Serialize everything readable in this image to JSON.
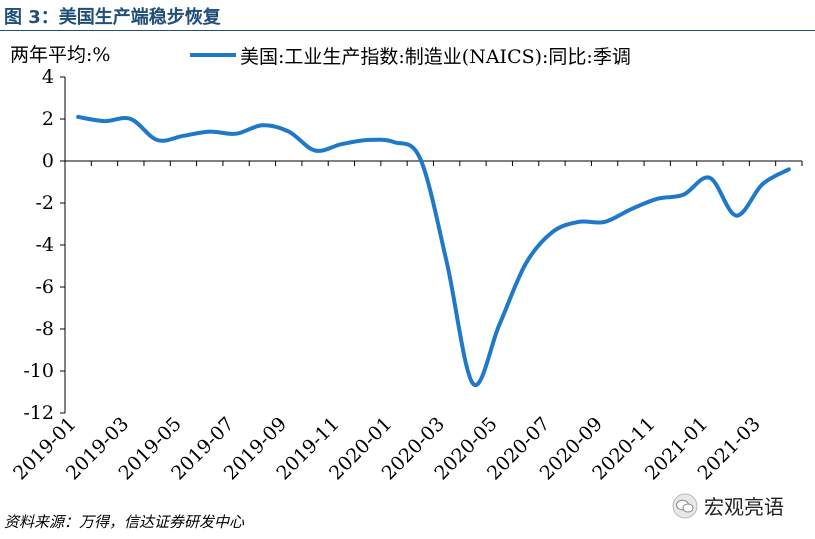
{
  "figure_title": "图 3：美国生产端稳步恢复",
  "source": "资料来源：万得，信达证券研发中心",
  "watermark": "宏观亮语",
  "colors": {
    "line": "#1f78c8",
    "title": "#1f4e79"
  },
  "chart_data": {
    "type": "line",
    "ylabel": "两年平均:%",
    "ylim": [
      -12,
      4
    ],
    "yticks": [
      4,
      2,
      0,
      -2,
      -4,
      -6,
      -8,
      -10,
      -12
    ],
    "grid": false,
    "legend_position": "top",
    "xticks": [
      "2019-01",
      "2019-03",
      "2019-05",
      "2019-07",
      "2019-09",
      "2019-11",
      "2020-01",
      "2020-03",
      "2020-05",
      "2020-07",
      "2020-09",
      "2020-11",
      "2021-01",
      "2021-03"
    ],
    "x": [
      "2019-01",
      "2019-02",
      "2019-03",
      "2019-04",
      "2019-05",
      "2019-06",
      "2019-07",
      "2019-08",
      "2019-09",
      "2019-10",
      "2019-11",
      "2019-12",
      "2020-01",
      "2020-02",
      "2020-03",
      "2020-04",
      "2020-05",
      "2020-06",
      "2020-07",
      "2020-08",
      "2020-09",
      "2020-10",
      "2020-11",
      "2020-12",
      "2021-01",
      "2021-02",
      "2021-03",
      "2021-04"
    ],
    "series": [
      {
        "name": "美国:工业生产指数:制造业(NAICS):同比:季调",
        "values": [
          2.1,
          1.9,
          2.0,
          1.0,
          1.2,
          1.4,
          1.3,
          1.7,
          1.4,
          0.5,
          0.8,
          1.0,
          0.9,
          0.1,
          -4.8,
          -10.6,
          -7.8,
          -4.9,
          -3.4,
          -2.9,
          -2.9,
          -2.3,
          -1.8,
          -1.6,
          -0.8,
          -2.6,
          -1.1,
          -0.4
        ]
      }
    ]
  }
}
